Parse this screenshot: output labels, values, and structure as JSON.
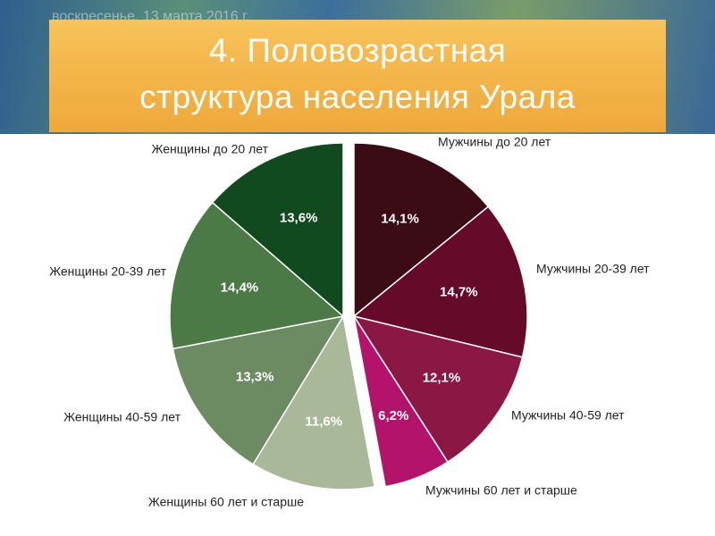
{
  "date": "воскресенье, 13 марта 2016 г.",
  "chart_data": {
    "type": "pie",
    "title": [
      "4. Половозрастная",
      "структура населения Урала"
    ],
    "categories": [
      "Мужчины до 20 лет",
      "Мужчины 20-39 лет",
      "Мужчины 40-59 лет",
      "Мужчины 60 лет и старше",
      "Женщины 60 лет и старше",
      "Женщины 40-59 лет",
      "Женщины 20-39 лет",
      "Женщины до 20 лет"
    ],
    "values": [
      14.1,
      14.7,
      12.1,
      6.2,
      11.6,
      13.3,
      14.4,
      13.6
    ],
    "value_labels": [
      "14,1%",
      "14,7%",
      "12,1%",
      "6,2%",
      "11,6%",
      "13,3%",
      "14,4%",
      "13,6%"
    ],
    "colors": [
      "#3b0b16",
      "#660a29",
      "#8a1744",
      "#b3136b",
      "#a9b898",
      "#6d8b62",
      "#4c7a46",
      "#124a1f"
    ]
  }
}
